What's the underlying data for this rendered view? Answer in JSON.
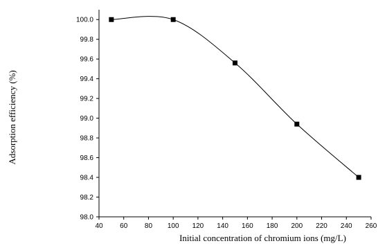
{
  "chart_data": {
    "type": "line",
    "title": "",
    "xlabel": "Initial concentration of chromium ions (mg/L)",
    "ylabel": "Adsorption efficiency (%)",
    "xlim": [
      40,
      260
    ],
    "ylim": [
      98.0,
      100.1
    ],
    "x_ticks": [
      40,
      60,
      80,
      100,
      120,
      140,
      160,
      180,
      200,
      220,
      240,
      260
    ],
    "y_ticks": [
      98.0,
      98.2,
      98.4,
      98.6,
      98.8,
      99.0,
      99.2,
      99.4,
      99.6,
      99.8,
      100.0
    ],
    "grid": false,
    "legend": "none",
    "smooth": true,
    "series": [
      {
        "marker": "square",
        "color": "#000000",
        "x": [
          50,
          100,
          150,
          200,
          250
        ],
        "y": [
          100.0,
          100.0,
          99.56,
          98.94,
          98.4
        ]
      }
    ]
  }
}
